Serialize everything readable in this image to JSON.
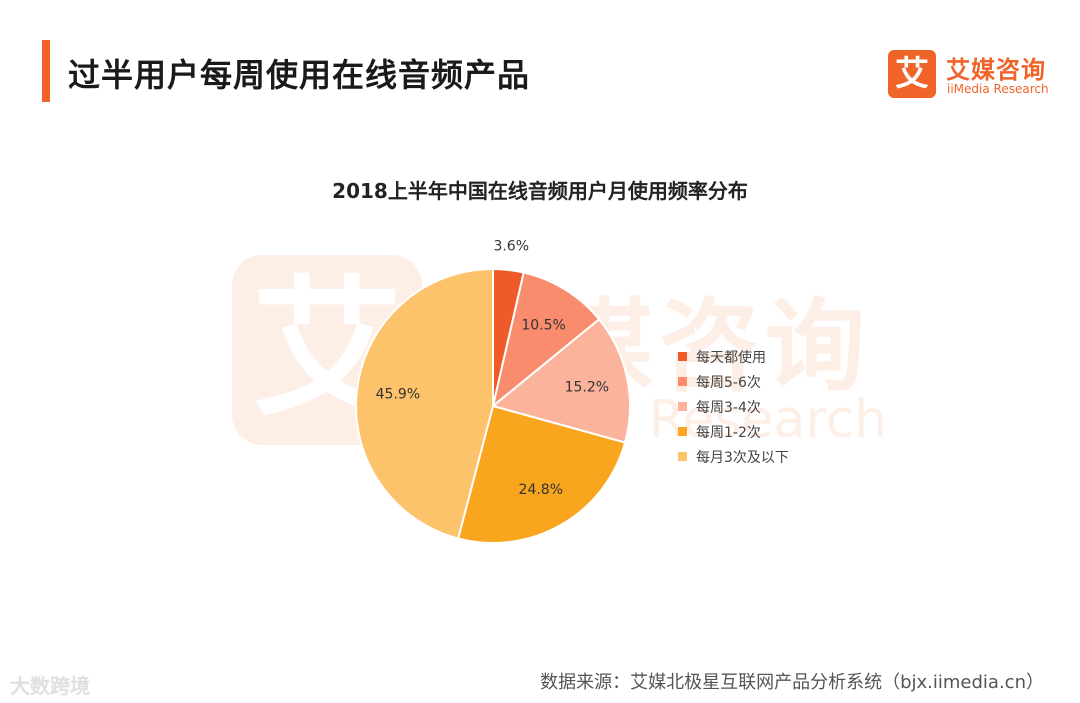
{
  "header": {
    "title": "过半用户每周使用在线音频产品",
    "logo": {
      "mark": "艾",
      "cn": "艾媒咨询",
      "en": "iiMedia Research",
      "color": "#f0642a"
    }
  },
  "watermark": {
    "mark": "艾",
    "cn": "艾媒咨询",
    "en": "iiMedia Research"
  },
  "chart_data": {
    "type": "pie",
    "title": "2018上半年中国在线音频用户月使用频率分布",
    "categories": [
      "每天都使用",
      "每周5-6次",
      "每周3-4次",
      "每周1-2次",
      "每月3次及以下"
    ],
    "values": [
      3.6,
      10.5,
      15.2,
      24.8,
      45.9
    ],
    "labels": [
      "3.6%",
      "10.5%",
      "15.2%",
      "24.8%",
      "45.9%"
    ],
    "colors": [
      "#f05a28",
      "#f98c6c",
      "#fbb39b",
      "#f9a51e",
      "#fcc36a"
    ],
    "unit": "%",
    "legend_position": "right",
    "start": "top",
    "direction": "clockwise"
  },
  "footer": {
    "source": "数据来源：艾媒北极星互联网产品分析系统（bjx.iimedia.cn）",
    "corner_mark": "大数跨境"
  }
}
